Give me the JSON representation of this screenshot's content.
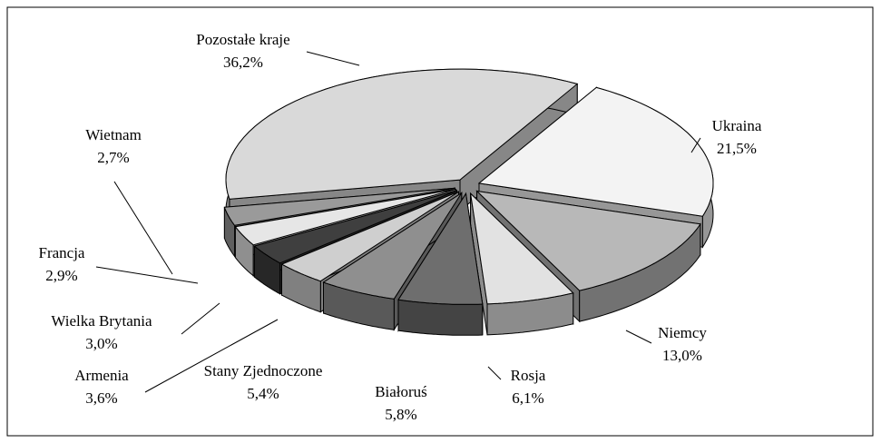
{
  "chart_data": {
    "type": "pie3d",
    "categories": [
      "Pozostałe kraje",
      "Ukraina",
      "Niemcy",
      "Rosja",
      "Białoruś",
      "Stany Zjednoczone",
      "Armenia",
      "Wielka Brytania",
      "Francja",
      "Wietnam"
    ],
    "values": [
      36.2,
      21.5,
      13.0,
      6.1,
      5.8,
      5.4,
      3.6,
      3.0,
      2.9,
      2.7
    ],
    "value_labels": [
      "36,2%",
      "21,5%",
      "13,0%",
      "6,1%",
      "5,8%",
      "5,4%",
      "3,6%",
      "3,0%",
      "2,9%",
      "2,7%"
    ],
    "colors": [
      "#d9d9d9",
      "#f3f3f3",
      "#b8b8b8",
      "#e2e2e2",
      "#6e6e6e",
      "#8f8f8f",
      "#cfcfcf",
      "#3f3f3f",
      "#e6e6e6",
      "#9a9a9a"
    ]
  }
}
